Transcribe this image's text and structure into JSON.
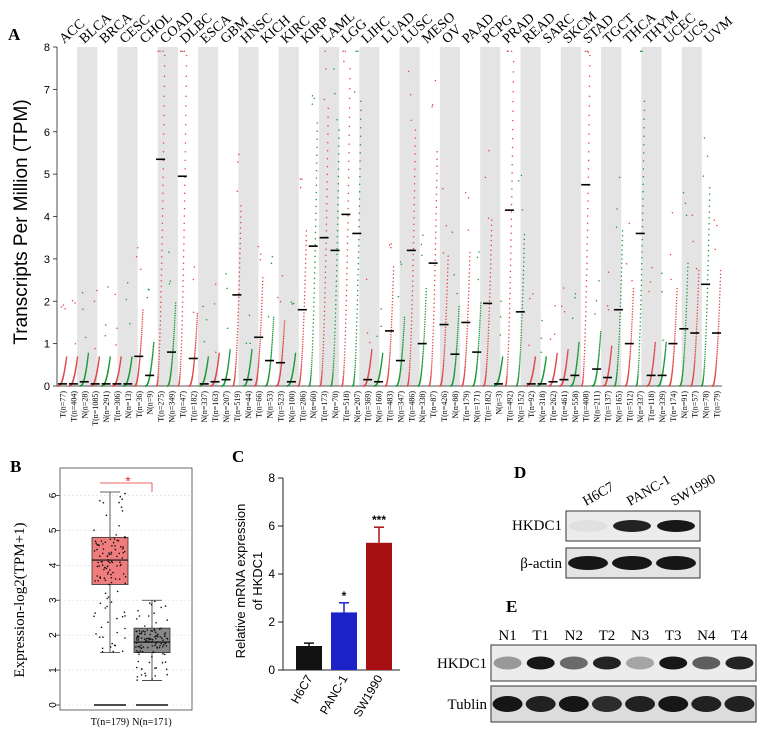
{
  "colors": {
    "tumor": "#e0494a",
    "normal": "#1e9a3a",
    "band": "#e4e4e4",
    "sig": "#e03030",
    "bar_h6c7": "#111111",
    "bar_panc": "#1a22c8",
    "bar_sw": "#a80f12",
    "box_tumor": "#f07d7d",
    "box_normal": "#888888"
  },
  "panel_labels": {
    "a": "A",
    "b": "B",
    "c": "C",
    "d": "D",
    "e": "E"
  },
  "panel_a": {
    "chart_data": {
      "type": "scatter",
      "ylabel": "Transcripts Per Million (TPM)",
      "ylim": [
        0,
        8
      ],
      "yticks": [
        "0",
        "1",
        "2",
        "3",
        "4",
        "5",
        "6",
        "7",
        "8"
      ],
      "cancers": [
        "ACC",
        "BLCA",
        "BRCA",
        "CESC",
        "CHOL",
        "COAD",
        "DLBC",
        "ESCA",
        "GBM",
        "HNSC",
        "KICH",
        "KIRC",
        "KIRP",
        "LAML",
        "LGG",
        "LIHC",
        "LUAD",
        "LUSC",
        "MESO",
        "OV",
        "PAAD",
        "PCPG",
        "PRAD",
        "READ",
        "SARC",
        "SKCM",
        "STAD",
        "TGCT",
        "THCA",
        "THYM",
        "UCEC",
        "UCS",
        "UVM"
      ],
      "groups": [
        {
          "label": "T(n=77)",
          "type": "T",
          "median": 0.05
        },
        {
          "label": "T(n=404)",
          "type": "T",
          "median": 0.05
        },
        {
          "label": "N(n=28)",
          "type": "N",
          "median": 0.1
        },
        {
          "label": "T(n=1085)",
          "type": "T",
          "median": 0.05
        },
        {
          "label": "N(n=291)",
          "type": "N",
          "median": 0.05
        },
        {
          "label": "T(n=306)",
          "type": "T",
          "median": 0.05
        },
        {
          "label": "N(n=13)",
          "type": "N",
          "median": 0.05
        },
        {
          "label": "T(n=36)",
          "type": "T",
          "median": 0.7
        },
        {
          "label": "N(n=9)",
          "type": "N",
          "median": 0.25
        },
        {
          "label": "T(n=275)",
          "type": "T",
          "median": 5.35
        },
        {
          "label": "N(n=349)",
          "type": "N",
          "median": 0.8
        },
        {
          "label": "T(n=47)",
          "type": "T",
          "median": 4.95
        },
        {
          "label": "T(n=182)",
          "type": "T",
          "median": 0.65
        },
        {
          "label": "N(n=337)",
          "type": "N",
          "median": 0.05
        },
        {
          "label": "T(n=163)",
          "type": "T",
          "median": 0.1
        },
        {
          "label": "N(n=207)",
          "type": "N",
          "median": 0.15
        },
        {
          "label": "T(n=519)",
          "type": "T",
          "median": 2.15
        },
        {
          "label": "N(n=44)",
          "type": "N",
          "median": 0.15
        },
        {
          "label": "T(n=66)",
          "type": "T",
          "median": 1.15
        },
        {
          "label": "N(n=53)",
          "type": "N",
          "median": 0.6
        },
        {
          "label": "T(n=523)",
          "type": "T",
          "median": 0.55
        },
        {
          "label": "N(n=100)",
          "type": "N",
          "median": 0.1
        },
        {
          "label": "T(n=286)",
          "type": "T",
          "median": 1.8
        },
        {
          "label": "N(n=60)",
          "type": "N",
          "median": 3.3
        },
        {
          "label": "T(n=173)",
          "type": "T",
          "median": 3.5
        },
        {
          "label": "N(n=70)",
          "type": "N",
          "median": 3.2
        },
        {
          "label": "T(n=518)",
          "type": "T",
          "median": 4.05
        },
        {
          "label": "N(n=207)",
          "type": "N",
          "median": 3.6
        },
        {
          "label": "T(n=369)",
          "type": "T",
          "median": 0.15
        },
        {
          "label": "N(n=160)",
          "type": "N",
          "median": 0.1
        },
        {
          "label": "T(n=483)",
          "type": "T",
          "median": 1.3
        },
        {
          "label": "N(n=347)",
          "type": "N",
          "median": 0.6
        },
        {
          "label": "T(n=486)",
          "type": "T",
          "median": 3.2
        },
        {
          "label": "N(n=338)",
          "type": "N",
          "median": 1.0
        },
        {
          "label": "T(n=87)",
          "type": "T",
          "median": 2.9
        },
        {
          "label": "T(n=426)",
          "type": "T",
          "median": 1.45
        },
        {
          "label": "N(n=88)",
          "type": "N",
          "median": 0.75
        },
        {
          "label": "T(n=179)",
          "type": "T",
          "median": 1.5
        },
        {
          "label": "N(n=171)",
          "type": "N",
          "median": 0.8
        },
        {
          "label": "T(n=182)",
          "type": "T",
          "median": 1.95
        },
        {
          "label": "N(n=3)",
          "type": "N",
          "median": 0.05
        },
        {
          "label": "T(n=492)",
          "type": "T",
          "median": 4.15
        },
        {
          "label": "N(n=152)",
          "type": "N",
          "median": 1.75
        },
        {
          "label": "T(n=92)",
          "type": "T",
          "median": 0.05
        },
        {
          "label": "N(n=318)",
          "type": "N",
          "median": 0.05
        },
        {
          "label": "T(n=262)",
          "type": "T",
          "median": 0.1
        },
        {
          "label": "T(n=461)",
          "type": "T",
          "median": 0.15
        },
        {
          "label": "N(n=558)",
          "type": "N",
          "median": 0.25
        },
        {
          "label": "T(n=408)",
          "type": "T",
          "median": 4.75
        },
        {
          "label": "N(n=211)",
          "type": "N",
          "median": 0.4
        },
        {
          "label": "T(n=137)",
          "type": "T",
          "median": 0.2
        },
        {
          "label": "N(n=165)",
          "type": "N",
          "median": 1.8
        },
        {
          "label": "T(n=512)",
          "type": "T",
          "median": 1.0
        },
        {
          "label": "N(n=337)",
          "type": "N",
          "median": 3.6
        },
        {
          "label": "T(n=118)",
          "type": "T",
          "median": 0.25
        },
        {
          "label": "N(n=339)",
          "type": "N",
          "median": 0.25
        },
        {
          "label": "T(n=174)",
          "type": "T",
          "median": 1.0
        },
        {
          "label": "N(n=91)",
          "type": "N",
          "median": 1.35
        },
        {
          "label": "T(n=57)",
          "type": "T",
          "median": 1.25
        },
        {
          "label": "N(n=78)",
          "type": "N",
          "median": 2.4
        },
        {
          "label": "T(n=79)",
          "type": "T",
          "median": 1.25
        }
      ]
    }
  },
  "panel_b": {
    "chart_data": {
      "type": "box",
      "ylabel": "Expression-log2(TPM+1)",
      "ylim": [
        0,
        6.5
      ],
      "yticks": [
        "0",
        "1",
        "2",
        "3",
        "4",
        "5",
        "6"
      ],
      "significance": "*",
      "boxes": [
        {
          "label": "T(n=179)",
          "q1": 3.45,
          "median": 4.15,
          "q3": 4.8,
          "whisker_low": 1.5,
          "whisker_high": 6.1,
          "min": 0,
          "color_key": "tumor"
        },
        {
          "label": "N(n=171)",
          "q1": 1.5,
          "median": 1.8,
          "q3": 2.2,
          "whisker_low": 0.7,
          "whisker_high": 3.0,
          "min": 0,
          "color_key": "normal"
        }
      ]
    }
  },
  "panel_c": {
    "chart_data": {
      "type": "bar",
      "ylabel": "Relative mRNA expression\nof HKDC1",
      "ylabel_line1": "Relative mRNA expression",
      "ylabel_line2": "of HKDC1",
      "ylim": [
        0,
        8
      ],
      "yticks": [
        "0",
        "2",
        "4",
        "6",
        "8"
      ],
      "categories": [
        "H6C7",
        "PANC-1",
        "SW1990"
      ],
      "values": [
        1.0,
        2.4,
        5.3
      ],
      "errors": [
        0.12,
        0.4,
        0.65
      ],
      "significance": [
        "",
        "*",
        "***"
      ]
    }
  },
  "panel_d": {
    "lanes": [
      "H6C7",
      "PANC-1",
      "SW1990"
    ],
    "rows": [
      "HKDC1",
      "β-actin"
    ],
    "intensity_hkdc1": [
      0.05,
      0.85,
      0.9
    ],
    "intensity_actin": [
      0.9,
      0.9,
      0.9
    ]
  },
  "panel_e": {
    "lanes": [
      "N1",
      "T1",
      "N2",
      "T2",
      "N3",
      "T3",
      "N4",
      "T4"
    ],
    "rows": [
      "HKDC1",
      "Tublin"
    ],
    "intensity_hkdc1": [
      0.35,
      0.9,
      0.55,
      0.85,
      0.3,
      0.9,
      0.6,
      0.85
    ],
    "intensity_tublin": [
      0.9,
      0.85,
      0.9,
      0.8,
      0.85,
      0.9,
      0.85,
      0.85
    ]
  }
}
